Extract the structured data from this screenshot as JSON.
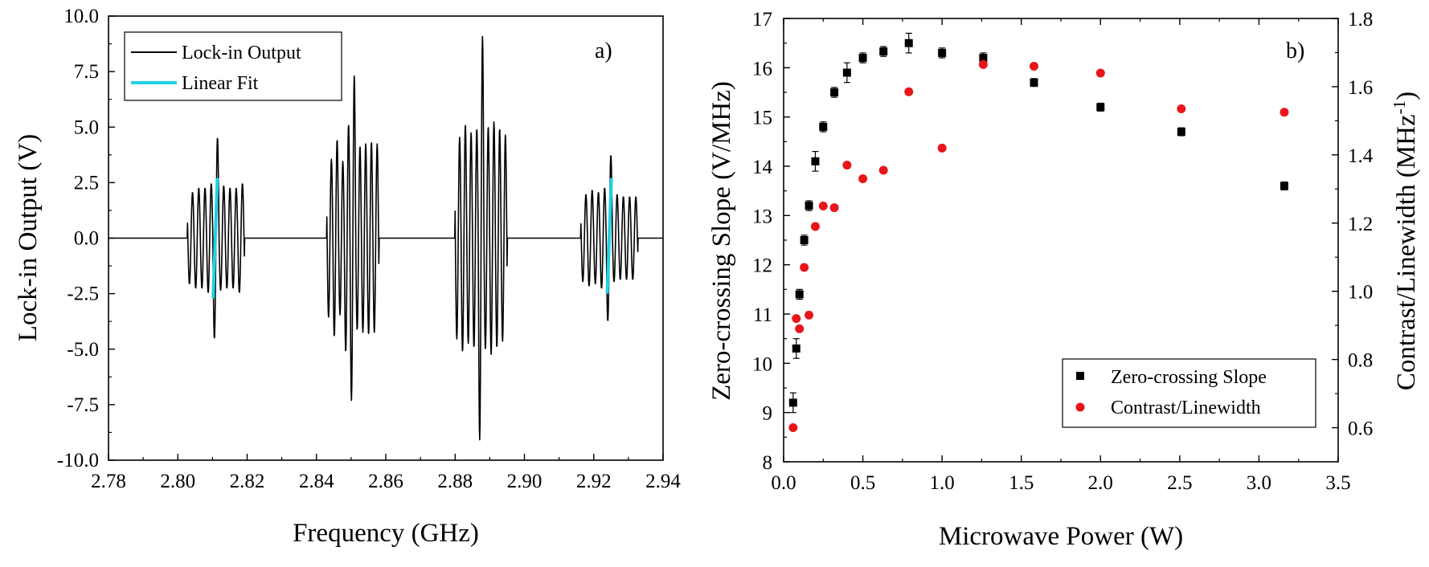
{
  "chart_data": [
    {
      "type": "line",
      "panel_label": "a)",
      "title": "",
      "xlabel": "Frequency (GHz)",
      "ylabel": "Lock-in Output (V)",
      "xlim": [
        2.78,
        2.94
      ],
      "ylim": [
        -10.0,
        10.0
      ],
      "xticks": [
        "2.78",
        "2.80",
        "2.82",
        "2.84",
        "2.86",
        "2.88",
        "2.90",
        "2.92",
        "2.94"
      ],
      "yticks": [
        "-10.0",
        "-7.5",
        "-5.0",
        "-2.5",
        "0.0",
        "2.5",
        "5.0",
        "7.5",
        "10.0"
      ],
      "grid": false,
      "legend_position": "top-left",
      "series": [
        {
          "name": "Lock-in Output",
          "color": "#000000",
          "kind": "trace",
          "groups": [
            {
              "center": 2.811,
              "spacing": 0.0018,
              "amps": [
                2.1,
                2.3,
                2.3,
                2.5,
                4.6,
                2.4,
                2.3,
                2.3,
                2.5
              ],
              "dip_first": true
            },
            {
              "center": 2.8505,
              "spacing": 0.00165,
              "amps": [
                3.6,
                4.5,
                3.5,
                5.2,
                7.4,
                4.2,
                4.3,
                4.4,
                4.3
              ],
              "dip_first": true
            },
            {
              "center": 2.8875,
              "spacing": 0.00165,
              "amps": [
                4.6,
                5.2,
                4.8,
                5.0,
                9.2,
                5.1,
                5.3,
                5.0,
                4.7
              ],
              "dip_first": true
            },
            {
              "center": 2.9245,
              "spacing": 0.0018,
              "amps": [
                2.0,
                2.2,
                2.1,
                2.3,
                3.8,
                2.0,
                1.9,
                1.9,
                1.9
              ],
              "dip_first": true
            }
          ]
        },
        {
          "name": "Linear Fit",
          "color": "#1fd2e6",
          "kind": "segments",
          "segments": [
            {
              "x": [
                2.8102,
                2.8114
              ],
              "y": [
                -2.7,
                2.7
              ]
            },
            {
              "x": [
                2.9239,
                2.9251
              ],
              "y": [
                -2.5,
                2.7
              ]
            }
          ]
        }
      ]
    },
    {
      "type": "scatter",
      "panel_label": "b)",
      "title": "",
      "xlabel": "Microwave Power (W)",
      "ylabel": "Zero-crossing Slope (V/MHz)",
      "ylabel_right": "Contrast/Linewidth (MHz",
      "ylabel_right_sup": "-1",
      "ylabel_right_close": ")",
      "xlim": [
        0.0,
        3.5
      ],
      "ylim": [
        8,
        17
      ],
      "ylim_right": [
        0.5,
        1.8
      ],
      "xticks": [
        "0.0",
        "0.5",
        "1.0",
        "1.5",
        "2.0",
        "2.5",
        "3.0",
        "3.5"
      ],
      "yticks": [
        "8",
        "9",
        "10",
        "11",
        "12",
        "13",
        "14",
        "15",
        "16",
        "17"
      ],
      "yticks_right": [
        "0.6",
        "0.8",
        "1.0",
        "1.2",
        "1.4",
        "1.6",
        "1.8"
      ],
      "grid": false,
      "legend_position": "bottom-right",
      "series": [
        {
          "name": "Zero-crossing Slope",
          "axis": "left",
          "marker": "square",
          "color": "#000000",
          "x": [
            0.06,
            0.08,
            0.1,
            0.13,
            0.16,
            0.2,
            0.25,
            0.32,
            0.4,
            0.5,
            0.63,
            0.79,
            1.0,
            1.26,
            1.58,
            2.0,
            2.51,
            3.16
          ],
          "y": [
            9.2,
            10.3,
            11.4,
            12.5,
            13.2,
            14.1,
            14.8,
            15.5,
            15.9,
            16.2,
            16.33,
            16.5,
            16.3,
            16.2,
            15.7,
            15.2,
            14.7,
            13.6
          ],
          "yerr": [
            0.2,
            0.2,
            0.1,
            0.1,
            0.1,
            0.2,
            0.1,
            0.1,
            0.2,
            0.1,
            0.1,
            0.2,
            0.1,
            0.1,
            0.08,
            0.08,
            0.08,
            0.08
          ]
        },
        {
          "name": "Contrast/Linewidth",
          "axis": "right",
          "marker": "circle",
          "color": "#e8161b",
          "x": [
            0.06,
            0.08,
            0.1,
            0.13,
            0.16,
            0.2,
            0.25,
            0.32,
            0.4,
            0.5,
            0.63,
            0.79,
            1.0,
            1.26,
            1.58,
            2.0,
            2.51,
            3.16
          ],
          "y": [
            0.6,
            0.92,
            0.89,
            1.07,
            0.93,
            1.19,
            1.25,
            1.245,
            1.37,
            1.33,
            1.355,
            1.585,
            1.42,
            1.665,
            1.66,
            1.64,
            1.535,
            1.525
          ]
        }
      ]
    }
  ]
}
